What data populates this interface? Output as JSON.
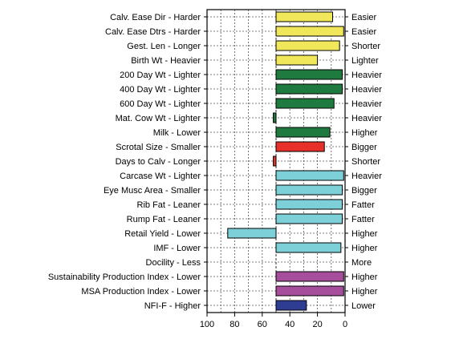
{
  "chart_data": {
    "type": "bar",
    "orientation": "horizontal",
    "x_axis_reversed": true,
    "xlim": [
      100,
      0
    ],
    "xticks": [
      100,
      80,
      60,
      40,
      20,
      0
    ],
    "reference_line": 50,
    "grid": true,
    "title": "",
    "xlabel": "",
    "ylabel": "",
    "bars": [
      {
        "label": "Calv. Ease Dir - Harder",
        "right_label": "Easier",
        "start": 50,
        "end": 9,
        "color": "#f0e85a"
      },
      {
        "label": "Calv. Ease Dtrs - Harder",
        "right_label": "Easier",
        "start": 50,
        "end": 1,
        "color": "#f0e85a"
      },
      {
        "label": "Gest. Len - Longer",
        "right_label": "Shorter",
        "start": 50,
        "end": 4,
        "color": "#f0e85a"
      },
      {
        "label": "Birth Wt - Heavier",
        "right_label": "Lighter",
        "start": 50,
        "end": 20,
        "color": "#f0e85a"
      },
      {
        "label": "200 Day Wt - Lighter",
        "right_label": "Heavier",
        "start": 50,
        "end": 2,
        "color": "#1f7a3f"
      },
      {
        "label": "400 Day Wt - Lighter",
        "right_label": "Heavier",
        "start": 50,
        "end": 2,
        "color": "#1f7a3f"
      },
      {
        "label": "600 Day Wt - Lighter",
        "right_label": "Heavier",
        "start": 50,
        "end": 8,
        "color": "#1f7a3f"
      },
      {
        "label": "Mat. Cow Wt - Lighter",
        "right_label": "Heavier",
        "start": 52,
        "end": 50,
        "color": "#1f7a3f"
      },
      {
        "label": "Milk - Lower",
        "right_label": "Higher",
        "start": 50,
        "end": 11,
        "color": "#1f7a3f"
      },
      {
        "label": "Scrotal Size - Smaller",
        "right_label": "Bigger",
        "start": 50,
        "end": 15,
        "color": "#e8302a"
      },
      {
        "label": "Days to Calv - Longer",
        "right_label": "Shorter",
        "start": 52,
        "end": 50,
        "color": "#e8302a"
      },
      {
        "label": "Carcase Wt - Lighter",
        "right_label": "Heavier",
        "start": 50,
        "end": 1,
        "color": "#7dd0d8"
      },
      {
        "label": "Eye Musc Area - Smaller",
        "right_label": "Bigger",
        "start": 50,
        "end": 2,
        "color": "#7dd0d8"
      },
      {
        "label": "Rib Fat - Leaner",
        "right_label": "Fatter",
        "start": 50,
        "end": 2,
        "color": "#7dd0d8"
      },
      {
        "label": "Rump Fat - Leaner",
        "right_label": "Fatter",
        "start": 50,
        "end": 2,
        "color": "#7dd0d8"
      },
      {
        "label": "Retail Yield - Lower",
        "right_label": "Higher",
        "start": 85,
        "end": 50,
        "color": "#7dd0d8"
      },
      {
        "label": "IMF - Lower",
        "right_label": "Higher",
        "start": 50,
        "end": 3,
        "color": "#7dd0d8"
      },
      {
        "label": "Docility - Less",
        "right_label": "More",
        "start": null,
        "end": null,
        "color": "#7dd0d8"
      },
      {
        "label": "Sustainability Production Index - Lower",
        "right_label": "Higher",
        "start": 50,
        "end": 1,
        "color": "#a64d9c"
      },
      {
        "label": "MSA Production Index - Lower",
        "right_label": "Higher",
        "start": 50,
        "end": 1,
        "color": "#a64d9c"
      },
      {
        "label": "NFI-F - Higher",
        "right_label": "Lower",
        "start": 50,
        "end": 28,
        "color": "#2e3d92"
      }
    ]
  }
}
